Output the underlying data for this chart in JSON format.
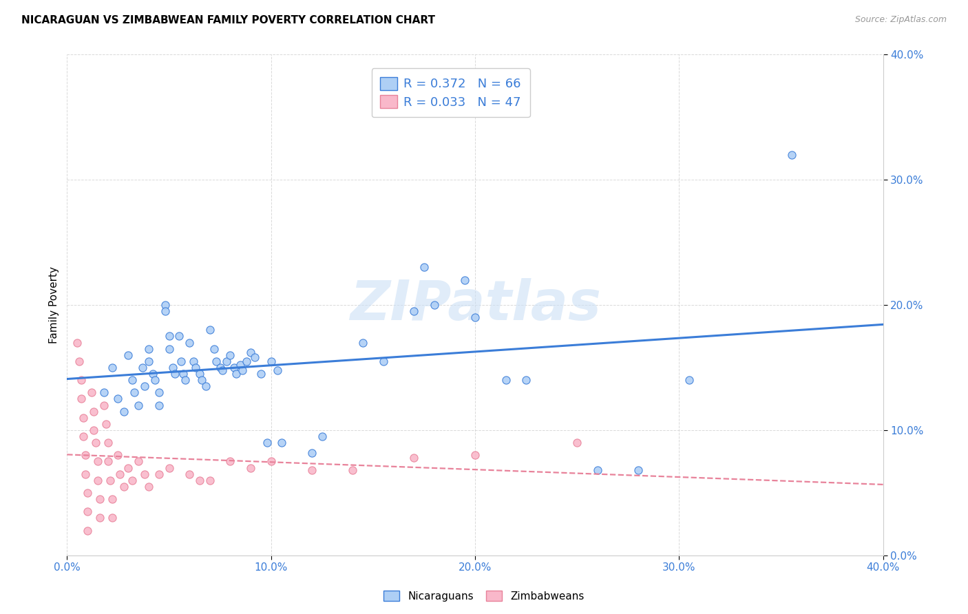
{
  "title": "NICARAGUAN VS ZIMBABWEAN FAMILY POVERTY CORRELATION CHART",
  "source": "Source: ZipAtlas.com",
  "ylabel": "Family Poverty",
  "xlim": [
    0.0,
    0.4
  ],
  "ylim": [
    0.0,
    0.4
  ],
  "xtick_vals": [
    0.0,
    0.1,
    0.2,
    0.3,
    0.4
  ],
  "xtick_labels": [
    "0.0%",
    "10.0%",
    "20.0%",
    "30.0%",
    "40.0%"
  ],
  "ytick_vals": [
    0.0,
    0.1,
    0.2,
    0.3,
    0.4
  ],
  "ytick_labels": [
    "0.0%",
    "10.0%",
    "20.0%",
    "30.0%",
    "40.0%"
  ],
  "nic_color": "#aecff5",
  "zim_color": "#f9b8ca",
  "nic_line_color": "#3b7dd8",
  "zim_line_color": "#e8829a",
  "tick_color": "#3b7dd8",
  "R_nic": 0.372,
  "N_nic": 66,
  "R_zim": 0.033,
  "N_zim": 47,
  "watermark": "ZIPatlas",
  "legend_label_nic": "Nicaraguans",
  "legend_label_zim": "Zimbabweans",
  "nic_scatter": [
    [
      0.018,
      0.13
    ],
    [
      0.022,
      0.15
    ],
    [
      0.025,
      0.125
    ],
    [
      0.028,
      0.115
    ],
    [
      0.03,
      0.16
    ],
    [
      0.032,
      0.14
    ],
    [
      0.033,
      0.13
    ],
    [
      0.035,
      0.12
    ],
    [
      0.037,
      0.15
    ],
    [
      0.038,
      0.135
    ],
    [
      0.04,
      0.165
    ],
    [
      0.04,
      0.155
    ],
    [
      0.042,
      0.145
    ],
    [
      0.043,
      0.14
    ],
    [
      0.045,
      0.13
    ],
    [
      0.045,
      0.12
    ],
    [
      0.048,
      0.2
    ],
    [
      0.048,
      0.195
    ],
    [
      0.05,
      0.175
    ],
    [
      0.05,
      0.165
    ],
    [
      0.052,
      0.15
    ],
    [
      0.053,
      0.145
    ],
    [
      0.055,
      0.175
    ],
    [
      0.056,
      0.155
    ],
    [
      0.057,
      0.145
    ],
    [
      0.058,
      0.14
    ],
    [
      0.06,
      0.17
    ],
    [
      0.062,
      0.155
    ],
    [
      0.063,
      0.15
    ],
    [
      0.065,
      0.145
    ],
    [
      0.066,
      0.14
    ],
    [
      0.068,
      0.135
    ],
    [
      0.07,
      0.18
    ],
    [
      0.072,
      0.165
    ],
    [
      0.073,
      0.155
    ],
    [
      0.075,
      0.15
    ],
    [
      0.076,
      0.148
    ],
    [
      0.078,
      0.155
    ],
    [
      0.08,
      0.16
    ],
    [
      0.082,
      0.15
    ],
    [
      0.083,
      0.145
    ],
    [
      0.085,
      0.152
    ],
    [
      0.086,
      0.148
    ],
    [
      0.088,
      0.155
    ],
    [
      0.09,
      0.162
    ],
    [
      0.092,
      0.158
    ],
    [
      0.095,
      0.145
    ],
    [
      0.098,
      0.09
    ],
    [
      0.1,
      0.155
    ],
    [
      0.103,
      0.148
    ],
    [
      0.105,
      0.09
    ],
    [
      0.12,
      0.082
    ],
    [
      0.125,
      0.095
    ],
    [
      0.145,
      0.17
    ],
    [
      0.155,
      0.155
    ],
    [
      0.17,
      0.195
    ],
    [
      0.175,
      0.23
    ],
    [
      0.18,
      0.2
    ],
    [
      0.195,
      0.22
    ],
    [
      0.2,
      0.19
    ],
    [
      0.215,
      0.14
    ],
    [
      0.225,
      0.14
    ],
    [
      0.26,
      0.068
    ],
    [
      0.28,
      0.068
    ],
    [
      0.305,
      0.14
    ],
    [
      0.355,
      0.32
    ]
  ],
  "zim_scatter": [
    [
      0.005,
      0.17
    ],
    [
      0.006,
      0.155
    ],
    [
      0.007,
      0.14
    ],
    [
      0.007,
      0.125
    ],
    [
      0.008,
      0.11
    ],
    [
      0.008,
      0.095
    ],
    [
      0.009,
      0.08
    ],
    [
      0.009,
      0.065
    ],
    [
      0.01,
      0.05
    ],
    [
      0.01,
      0.035
    ],
    [
      0.01,
      0.02
    ],
    [
      0.012,
      0.13
    ],
    [
      0.013,
      0.115
    ],
    [
      0.013,
      0.1
    ],
    [
      0.014,
      0.09
    ],
    [
      0.015,
      0.075
    ],
    [
      0.015,
      0.06
    ],
    [
      0.016,
      0.045
    ],
    [
      0.016,
      0.03
    ],
    [
      0.018,
      0.12
    ],
    [
      0.019,
      0.105
    ],
    [
      0.02,
      0.09
    ],
    [
      0.02,
      0.075
    ],
    [
      0.021,
      0.06
    ],
    [
      0.022,
      0.045
    ],
    [
      0.022,
      0.03
    ],
    [
      0.025,
      0.08
    ],
    [
      0.026,
      0.065
    ],
    [
      0.028,
      0.055
    ],
    [
      0.03,
      0.07
    ],
    [
      0.032,
      0.06
    ],
    [
      0.035,
      0.075
    ],
    [
      0.038,
      0.065
    ],
    [
      0.04,
      0.055
    ],
    [
      0.045,
      0.065
    ],
    [
      0.05,
      0.07
    ],
    [
      0.06,
      0.065
    ],
    [
      0.065,
      0.06
    ],
    [
      0.07,
      0.06
    ],
    [
      0.08,
      0.075
    ],
    [
      0.09,
      0.07
    ],
    [
      0.1,
      0.075
    ],
    [
      0.12,
      0.068
    ],
    [
      0.14,
      0.068
    ],
    [
      0.17,
      0.078
    ],
    [
      0.2,
      0.08
    ],
    [
      0.25,
      0.09
    ]
  ]
}
